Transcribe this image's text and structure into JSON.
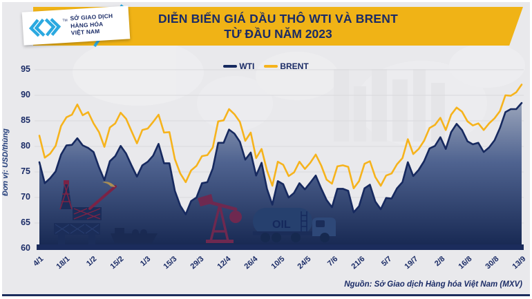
{
  "header": {
    "logo": {
      "org_lines": [
        "SỞ GIAO DỊCH",
        "HÀNG HÓA",
        "VIỆT NAM"
      ],
      "trademark": "TM"
    },
    "title_line1": "DIỄN BIẾN GIÁ DẦU THÔ WTI VÀ BRENT",
    "title_line2": "TỪ ĐẦU NĂM 2023"
  },
  "legend": [
    {
      "label": "WTI",
      "color": "#16295f"
    },
    {
      "label": "BRENT",
      "color": "#f6b31c"
    }
  ],
  "axes": {
    "y_unit_label": "Đơn vị: USD/thùng"
  },
  "decor": {
    "oil_tank_label": "OIL"
  },
  "footer": {
    "source": "Nguồn: Sở Giao dịch Hàng hóa Việt Nam (MXV)"
  },
  "colors": {
    "navy": "#1a2b66",
    "banner_gold": "#f0b316",
    "brent_yellow": "#f6b31c",
    "wti_navy": "#16295f",
    "background_gray": "#e9e9ec",
    "grid_gray": "#d9d9dc",
    "logo_cyan": "#2ba9e0",
    "silhouette_maroon": "#7b2346"
  },
  "chart_data": {
    "type": "line",
    "title": "DIỄN BIẾN GIÁ DẦU THÔ WTI VÀ BRENT TỪ ĐẦU NĂM 2023",
    "xlabel": "",
    "ylabel": "Đơn vị: USD/thùng",
    "ylim": [
      60,
      95
    ],
    "y_ticks": [
      60,
      65,
      70,
      75,
      80,
      85,
      90,
      95
    ],
    "x_tick_labels": [
      "4/1",
      "18/1",
      "1/2",
      "15/2",
      "1/3",
      "15/3",
      "29/3",
      "12/4",
      "26/4",
      "10/5",
      "24/5",
      "7/6",
      "21/6",
      "5/7",
      "19/7",
      "2/8",
      "16/8",
      "30/8",
      "13/9"
    ],
    "grid": "horizontal",
    "legend_position": "top-center",
    "series": [
      {
        "name": "WTI",
        "color": "#16295f",
        "fill": "gradient-area",
        "values": [
          76.9,
          72.8,
          73.8,
          75.1,
          78.4,
          80.2,
          80.3,
          81.6,
          80.2,
          79.7,
          78.9,
          75.9,
          73.4,
          77.1,
          78.1,
          80.1,
          78.6,
          76.3,
          74.1,
          76.3,
          77.0,
          78.2,
          80.5,
          76.7,
          76.7,
          71.3,
          68.4,
          66.7,
          69.3,
          70.0,
          72.8,
          73.0,
          75.7,
          80.7,
          80.7,
          83.3,
          82.5,
          80.9,
          77.4,
          78.8,
          74.3,
          76.8,
          71.7,
          68.6,
          73.2,
          72.6,
          70.0,
          70.9,
          72.8,
          71.6,
          72.9,
          74.3,
          71.8,
          69.5,
          68.1,
          71.7,
          71.7,
          71.3,
          67.1,
          68.3,
          71.8,
          72.5,
          69.2,
          67.7,
          69.9,
          69.8,
          71.8,
          73.0,
          76.9,
          74.2,
          75.4,
          77.1,
          79.6,
          80.1,
          81.8,
          79.5,
          82.8,
          84.4,
          83.2,
          81.0,
          80.4,
          80.7,
          78.9,
          79.8,
          81.2,
          83.6,
          86.7,
          87.3,
          87.3,
          88.5
        ]
      },
      {
        "name": "BRENT",
        "color": "#f6b31c",
        "fill": "none",
        "values": [
          82.1,
          77.8,
          78.6,
          80.1,
          84.0,
          85.7,
          86.2,
          88.2,
          86.1,
          86.7,
          84.5,
          82.8,
          79.9,
          83.7,
          84.5,
          86.6,
          85.4,
          83.0,
          80.6,
          83.2,
          83.5,
          84.8,
          86.2,
          82.7,
          82.8,
          77.5,
          74.7,
          73.0,
          75.3,
          76.2,
          78.1,
          78.3,
          79.8,
          84.9,
          85.1,
          87.3,
          86.3,
          84.8,
          81.1,
          82.7,
          77.7,
          79.5,
          75.3,
          72.3,
          77.0,
          76.4,
          74.2,
          74.9,
          77.0,
          75.6,
          76.8,
          78.4,
          76.3,
          73.5,
          72.7,
          76.1,
          76.3,
          76.0,
          71.8,
          73.2,
          76.6,
          77.1,
          74.0,
          72.3,
          74.3,
          74.7,
          76.5,
          77.7,
          81.4,
          78.5,
          79.5,
          81.1,
          83.6,
          84.2,
          85.6,
          83.2,
          86.2,
          87.6,
          86.8,
          84.9,
          84.1,
          84.5,
          83.2,
          84.5,
          85.5,
          86.9,
          90.0,
          89.9,
          90.6,
          92.1
        ]
      }
    ]
  }
}
